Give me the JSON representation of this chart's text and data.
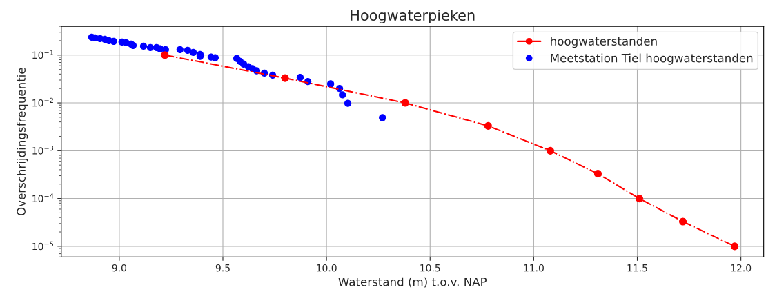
{
  "chart_data": {
    "type": "line",
    "title": "Hoogwaterpieken",
    "xlabel": "Waterstand (m) t.o.v. NAP",
    "ylabel": "Overschrijdingsfrequentie",
    "log": "y",
    "grid": true,
    "legend": "top right",
    "xlim": [
      8.72,
      12.11
    ],
    "xticks": [
      {
        "value": 9,
        "label": "9.0"
      },
      9.5,
      {
        "value": 10,
        "label": "10.0"
      },
      10.5,
      {
        "value": 11,
        "label": "11.0"
      },
      11.5,
      {
        "value": 12,
        "label": "12.0"
      }
    ],
    "ylim": [
      6e-06,
      0.4
    ],
    "yticks": [
      {
        "value": 0.1,
        "label": "10$^{−1}$"
      },
      {
        "value": 0.01,
        "label": "10$^{−2}$"
      },
      {
        "value": 0.001,
        "label": "10$^{−3}$"
      },
      {
        "value": 0.0001,
        "label": "10$^{−4}$"
      },
      {
        "value": 1e-05,
        "label": "10$^{−5}$"
      }
    ],
    "series": [
      {
        "name": "hoogwaterstanden",
        "color": "#ff0000",
        "marker": "circle",
        "line_style": "dashdot",
        "x": [
          9.22,
          9.8,
          10.38,
          10.78,
          11.08,
          11.31,
          11.51,
          11.72,
          11.97
        ],
        "values": [
          0.1,
          0.033,
          0.01,
          0.0033,
          0.001,
          0.00033,
          0.0001,
          3.3e-05,
          1e-05
        ]
      },
      {
        "name": "Meetstation Tiel hoogwaterstanden",
        "type": "scatter",
        "color": "#0000ff",
        "marker": "circle",
        "x": [
          8.867,
          8.883,
          8.907,
          8.93,
          8.95,
          8.973,
          9.013,
          9.033,
          9.057,
          9.067,
          9.117,
          9.15,
          9.18,
          9.197,
          9.223,
          9.293,
          9.33,
          9.357,
          9.39,
          9.39,
          9.443,
          9.463,
          9.567,
          9.583,
          9.6,
          9.623,
          9.643,
          9.663,
          9.7,
          9.74,
          9.873,
          9.91,
          10.02,
          10.063,
          10.077,
          10.103,
          10.27
        ],
        "values": [
          0.237,
          0.229,
          0.221,
          0.214,
          0.2,
          0.194,
          0.188,
          0.181,
          0.17,
          0.159,
          0.154,
          0.144,
          0.144,
          0.135,
          0.13,
          0.13,
          0.126,
          0.114,
          0.103,
          0.094,
          0.091,
          0.088,
          0.085,
          0.074,
          0.065,
          0.057,
          0.052,
          0.047,
          0.042,
          0.038,
          0.034,
          0.028,
          0.025,
          0.02,
          0.0147,
          0.0098,
          0.0049
        ]
      }
    ]
  }
}
